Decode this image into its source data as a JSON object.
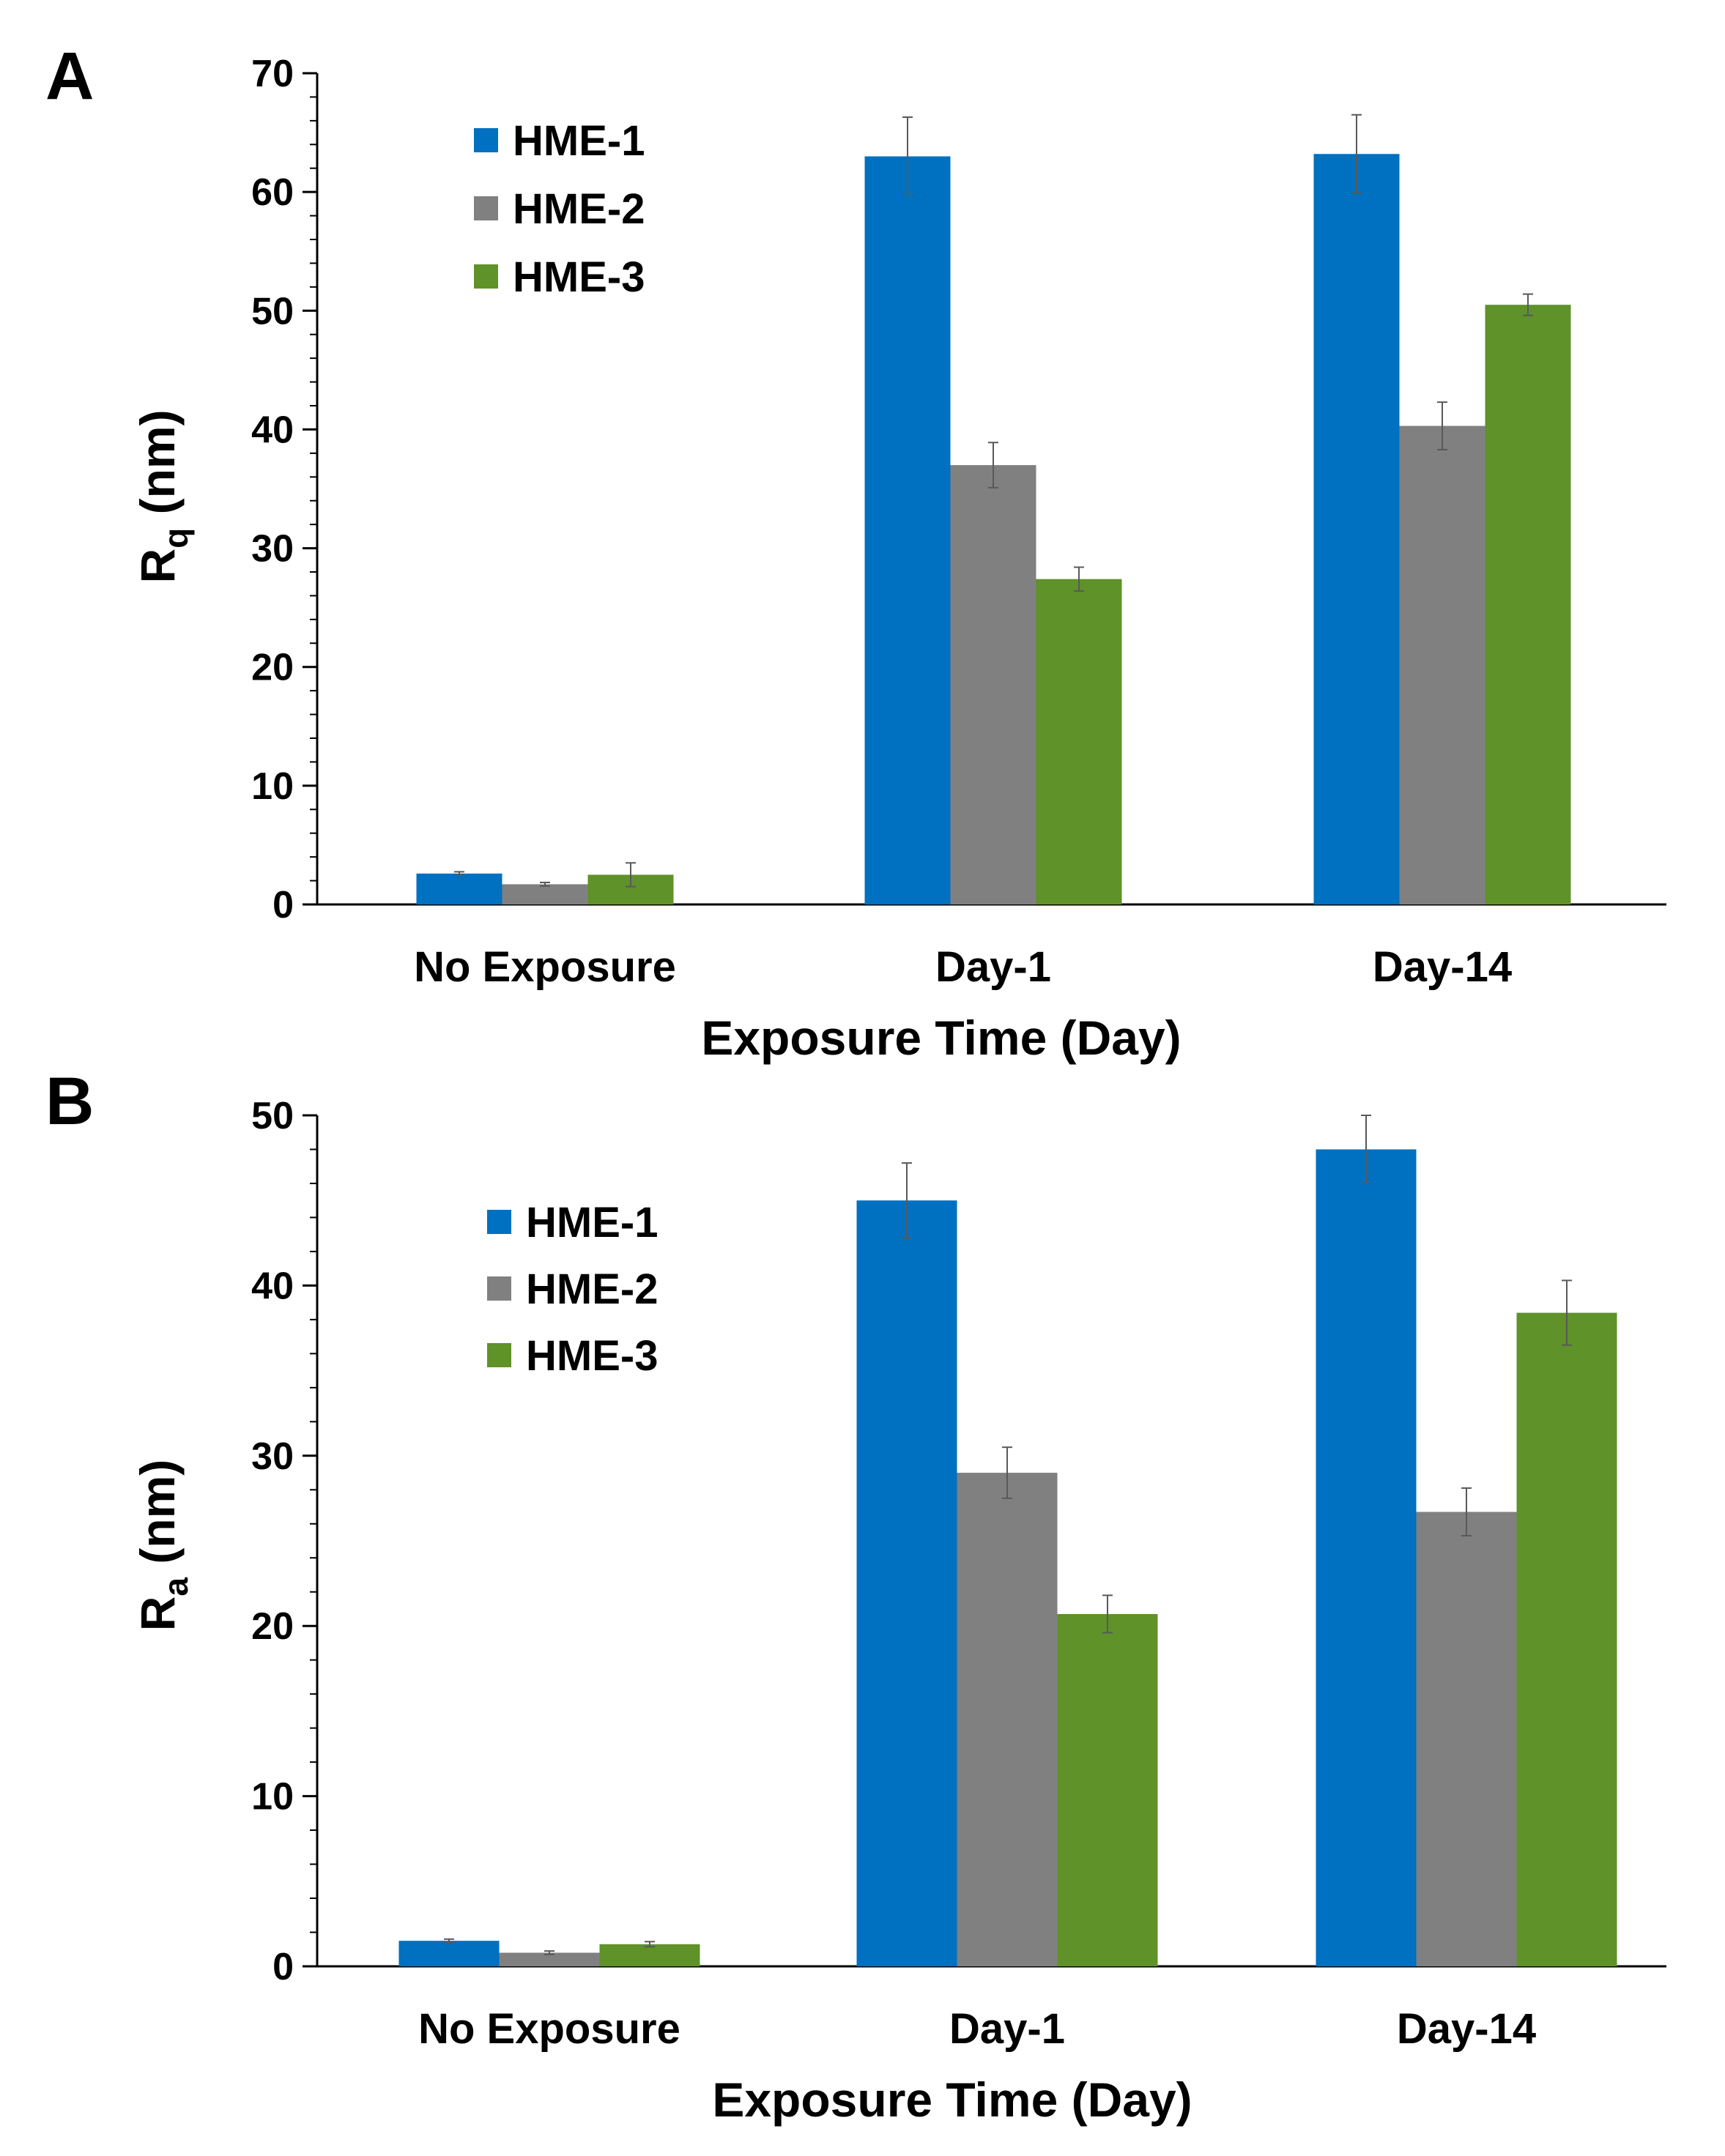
{
  "figure": {
    "colors": {
      "HME-1": "#0070c0",
      "HME-2": "#808080",
      "HME-3": "#5f9228",
      "axis": "#000000",
      "error_bar": "#595959"
    }
  },
  "chart_data": [
    {
      "panel": "A",
      "type": "bar",
      "title": "",
      "xlabel": "Exposure Time (Day)",
      "ylabel_main": "R",
      "ylabel_subscript": "q",
      "ylabel_unit": " (nm)",
      "categories": [
        "No Exposure",
        "Day-1",
        "Day-14"
      ],
      "ylim": [
        0,
        70
      ],
      "major_ticks": [
        0,
        10,
        20,
        30,
        40,
        50,
        60,
        70
      ],
      "tick_labels": [
        "0",
        "10",
        "20",
        "30",
        "40",
        "50",
        "60",
        "70"
      ],
      "minor_step": 2,
      "legend_position": "top-left",
      "series": [
        {
          "name": "HME-1",
          "color": "#0070c0",
          "values": [
            2.6,
            63.0,
            63.2
          ],
          "errors": [
            0.15,
            3.3,
            3.3
          ]
        },
        {
          "name": "HME-2",
          "color": "#808080",
          "values": [
            1.7,
            37.0,
            40.3
          ],
          "errors": [
            0.15,
            1.9,
            2.0
          ]
        },
        {
          "name": "HME-3",
          "color": "#5f9228",
          "values": [
            2.5,
            27.4,
            50.5
          ],
          "errors": [
            1.0,
            1.0,
            0.9
          ]
        }
      ]
    },
    {
      "panel": "B",
      "type": "bar",
      "title": "",
      "xlabel": "Exposure Time (Day)",
      "ylabel_main": "R",
      "ylabel_subscript": "a",
      "ylabel_unit": " (nm)",
      "categories": [
        "No Exposure",
        "Day-1",
        "Day-14"
      ],
      "ylim": [
        0,
        50
      ],
      "major_ticks": [
        0,
        10,
        20,
        30,
        40,
        50
      ],
      "tick_labels": [
        "0",
        "10",
        "20",
        "30",
        "40",
        "50"
      ],
      "minor_step": 2,
      "legend_position": "top-left",
      "series": [
        {
          "name": "HME-1",
          "color": "#0070c0",
          "values": [
            1.5,
            45.0,
            48.0
          ],
          "errors": [
            0.1,
            2.2,
            2.0
          ]
        },
        {
          "name": "HME-2",
          "color": "#808080",
          "values": [
            0.8,
            29.0,
            26.7
          ],
          "errors": [
            0.1,
            1.5,
            1.4
          ]
        },
        {
          "name": "HME-3",
          "color": "#5f9228",
          "values": [
            1.3,
            20.7,
            38.4
          ],
          "errors": [
            0.15,
            1.1,
            1.9
          ]
        }
      ]
    }
  ]
}
